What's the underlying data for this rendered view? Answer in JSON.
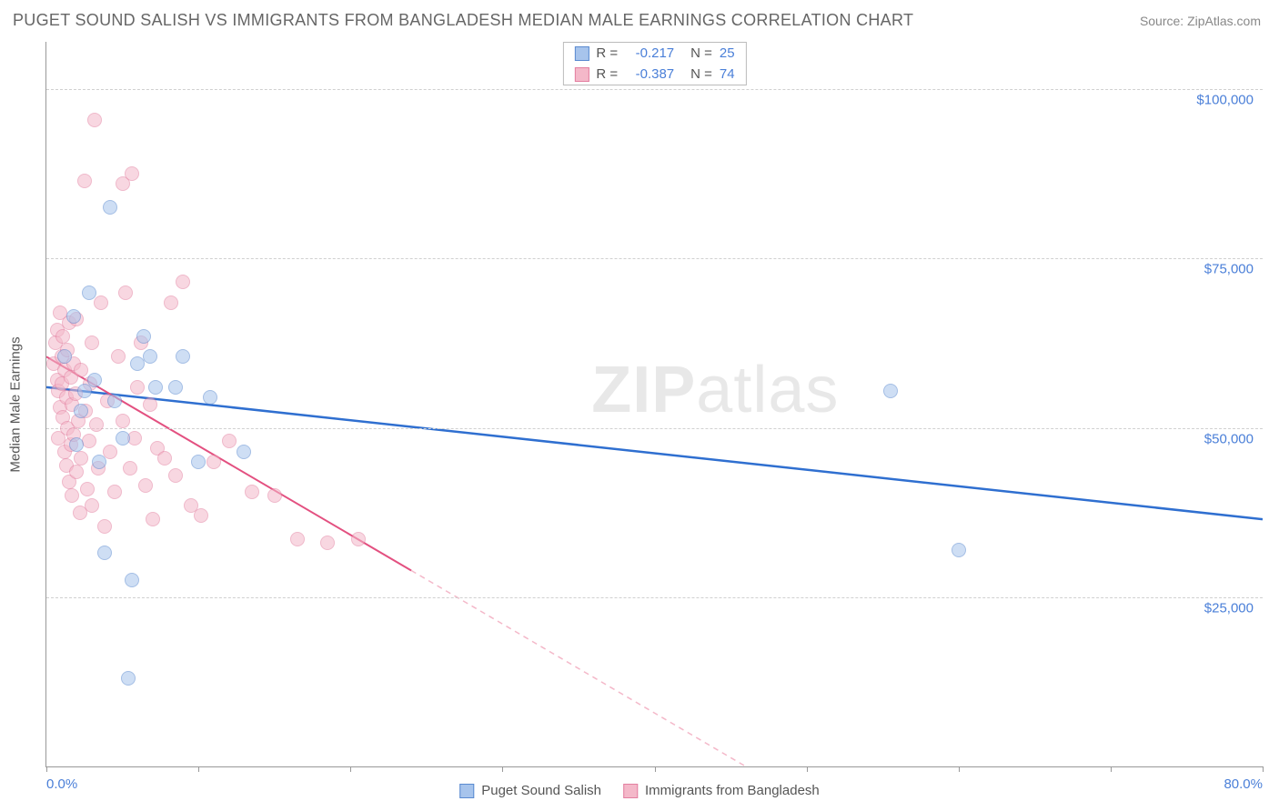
{
  "title": "PUGET SOUND SALISH VS IMMIGRANTS FROM BANGLADESH MEDIAN MALE EARNINGS CORRELATION CHART",
  "source_label": "Source: ZipAtlas.com",
  "watermark": {
    "bold": "ZIP",
    "light": "atlas"
  },
  "chart": {
    "type": "scatter",
    "background_color": "#ffffff",
    "grid_color": "#d0d0d0",
    "axis_color": "#999999",
    "text_color": "#555555",
    "value_color": "#4a7fd8",
    "y_axis_title": "Median Male Earnings",
    "xlim": [
      0,
      80
    ],
    "ylim": [
      0,
      107000
    ],
    "x_ticks_pct": [
      0,
      10,
      20,
      30,
      40,
      50,
      60,
      70,
      80
    ],
    "x_tick_labels": {
      "start": "0.0%",
      "end": "80.0%"
    },
    "y_gridlines": [
      25000,
      50000,
      75000,
      100000
    ],
    "y_tick_labels": [
      "$25,000",
      "$50,000",
      "$75,000",
      "$100,000"
    ],
    "point_radius": 8,
    "point_opacity": 0.55,
    "series": [
      {
        "name": "Puget Sound Salish",
        "fill": "#a7c4ec",
        "stroke": "#5a8ad0",
        "line_color": "#2f6fd0",
        "line_width": 2.5,
        "R": "-0.217",
        "N": "25",
        "trend": {
          "x1": 0,
          "y1": 56000,
          "x2": 80,
          "y2": 36500
        },
        "points": [
          [
            1.2,
            60500
          ],
          [
            1.8,
            66500
          ],
          [
            2.0,
            47500
          ],
          [
            2.3,
            52500
          ],
          [
            2.5,
            55500
          ],
          [
            2.8,
            70000
          ],
          [
            3.2,
            57000
          ],
          [
            3.5,
            45000
          ],
          [
            3.8,
            31500
          ],
          [
            4.2,
            82500
          ],
          [
            4.5,
            54000
          ],
          [
            5.0,
            48500
          ],
          [
            5.4,
            13000
          ],
          [
            5.6,
            27500
          ],
          [
            6.0,
            59500
          ],
          [
            6.4,
            63500
          ],
          [
            6.8,
            60500
          ],
          [
            7.2,
            56000
          ],
          [
            8.5,
            56000
          ],
          [
            9.0,
            60500
          ],
          [
            10.0,
            45000
          ],
          [
            10.8,
            54500
          ],
          [
            13.0,
            46500
          ],
          [
            55.5,
            55500
          ],
          [
            60.0,
            32000
          ]
        ]
      },
      {
        "name": "Immigrants from Bangladesh",
        "fill": "#f4b8c9",
        "stroke": "#e37fa0",
        "line_color": "#e35080",
        "line_width": 2,
        "R": "-0.387",
        "N": "74",
        "trend": {
          "x1": 0,
          "y1": 60500,
          "x2": 46,
          "y2": 0
        },
        "points": [
          [
            0.5,
            59500
          ],
          [
            0.6,
            62500
          ],
          [
            0.7,
            57000
          ],
          [
            0.7,
            64500
          ],
          [
            0.8,
            55500
          ],
          [
            0.8,
            48500
          ],
          [
            0.9,
            67000
          ],
          [
            0.9,
            53000
          ],
          [
            1.0,
            60500
          ],
          [
            1.0,
            56500
          ],
          [
            1.1,
            51500
          ],
          [
            1.1,
            63500
          ],
          [
            1.2,
            46500
          ],
          [
            1.2,
            58500
          ],
          [
            1.3,
            54500
          ],
          [
            1.3,
            44500
          ],
          [
            1.4,
            61500
          ],
          [
            1.4,
            50000
          ],
          [
            1.5,
            65500
          ],
          [
            1.5,
            42000
          ],
          [
            1.6,
            57500
          ],
          [
            1.6,
            47500
          ],
          [
            1.7,
            53500
          ],
          [
            1.7,
            40000
          ],
          [
            1.8,
            59500
          ],
          [
            1.8,
            49000
          ],
          [
            1.9,
            55000
          ],
          [
            2.0,
            43500
          ],
          [
            2.0,
            66000
          ],
          [
            2.1,
            51000
          ],
          [
            2.2,
            37500
          ],
          [
            2.3,
            58500
          ],
          [
            2.3,
            45500
          ],
          [
            2.5,
            86500
          ],
          [
            2.6,
            52500
          ],
          [
            2.7,
            41000
          ],
          [
            2.8,
            48000
          ],
          [
            2.9,
            56500
          ],
          [
            3.0,
            38500
          ],
          [
            3.0,
            62500
          ],
          [
            3.2,
            95500
          ],
          [
            3.3,
            50500
          ],
          [
            3.4,
            44000
          ],
          [
            3.6,
            68500
          ],
          [
            3.8,
            35500
          ],
          [
            4.0,
            54000
          ],
          [
            4.2,
            46500
          ],
          [
            4.5,
            40500
          ],
          [
            4.7,
            60500
          ],
          [
            5.0,
            86000
          ],
          [
            5.0,
            51000
          ],
          [
            5.2,
            70000
          ],
          [
            5.5,
            44000
          ],
          [
            5.6,
            87500
          ],
          [
            5.8,
            48500
          ],
          [
            6.0,
            56000
          ],
          [
            6.2,
            62500
          ],
          [
            6.5,
            41500
          ],
          [
            6.8,
            53500
          ],
          [
            7.0,
            36500
          ],
          [
            7.3,
            47000
          ],
          [
            7.8,
            45500
          ],
          [
            8.2,
            68500
          ],
          [
            8.5,
            43000
          ],
          [
            9.0,
            71500
          ],
          [
            9.5,
            38500
          ],
          [
            10.2,
            37000
          ],
          [
            11.0,
            45000
          ],
          [
            12.0,
            48000
          ],
          [
            13.5,
            40500
          ],
          [
            15.0,
            40000
          ],
          [
            16.5,
            33500
          ],
          [
            18.5,
            33000
          ],
          [
            20.5,
            33500
          ]
        ]
      }
    ]
  },
  "legend_labels": {
    "R": "R =",
    "N": "N ="
  }
}
